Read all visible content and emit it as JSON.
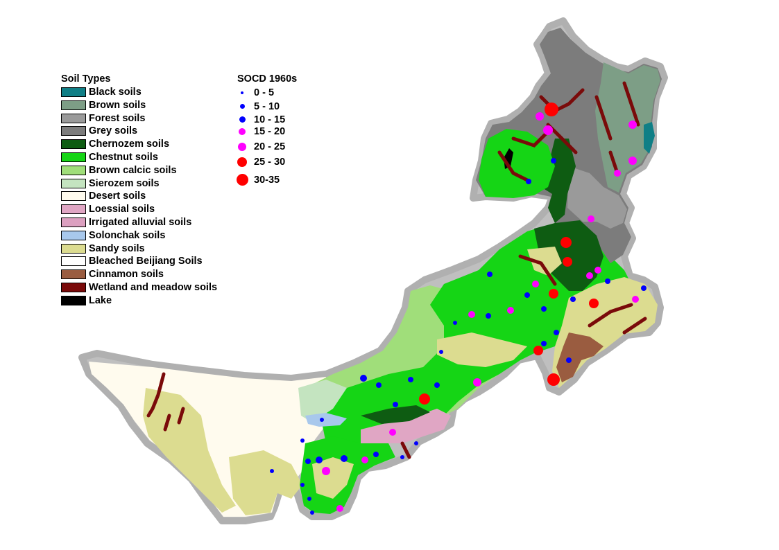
{
  "soil_legend": {
    "title": "Soil Types",
    "items": [
      {
        "label": "Black soils",
        "color": "#0f7f86"
      },
      {
        "label": "Brown soils",
        "color": "#7d9e86"
      },
      {
        "label": "Forest soils",
        "color": "#9a9a9a"
      },
      {
        "label": "Grey soils",
        "color": "#7c7c7c"
      },
      {
        "label": "Chernozem soils",
        "color": "#0e5c12"
      },
      {
        "label": "Chestnut soils",
        "color": "#15d515"
      },
      {
        "label": "Brown calcic soils",
        "color": "#a0de7a"
      },
      {
        "label": "Sierozem soils",
        "color": "#c4e4c0"
      },
      {
        "label": "Desert soils",
        "color": "#fffbee"
      },
      {
        "label": "Loessial soils",
        "color": "#e0a6c4"
      },
      {
        "label": "Irrigated alluvial soils",
        "color": "#dca0c0"
      },
      {
        "label": "Solonchak soils",
        "color": "#a8c8ec"
      },
      {
        "label": "Sandy soils",
        "color": "#dcdc90"
      },
      {
        "label": "Bleached Beijiang Soils",
        "color": "#ffffff"
      },
      {
        "label": "Cinnamon soils",
        "color": "#9a5c40"
      },
      {
        "label": "Wetland and meadow soils",
        "color": "#7a0a0a"
      },
      {
        "label": "Lake",
        "color": "#000000"
      }
    ]
  },
  "socd_legend": {
    "title": "SOCD 1960s",
    "classes": [
      {
        "label": "0 - 5",
        "color": "#0000ff"
      },
      {
        "label": "5 - 10",
        "color": "#0000ff"
      },
      {
        "label": "10 - 15",
        "color": "#0000ff"
      },
      {
        "label": "15 - 20",
        "color": "#ff00ff"
      },
      {
        "label": "20 - 25",
        "color": "#ff00ff"
      },
      {
        "label": "25 - 30",
        "color": "#ff0000"
      },
      {
        "label": "30-35",
        "color": "#ff0000"
      }
    ]
  }
}
